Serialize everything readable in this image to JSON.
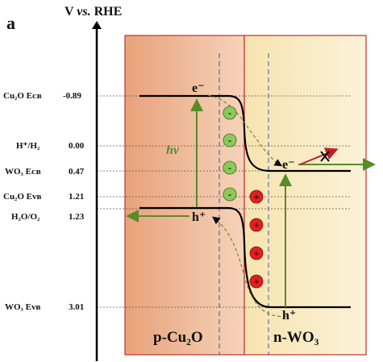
{
  "panel_label": "a",
  "axis": {
    "title_prefix": "V",
    "title_italic": "vs.",
    "title_suffix": "RHE"
  },
  "levels": [
    {
      "name": "Cu₂O Eᴄʙ",
      "value": "-0.89"
    },
    {
      "name": "H⁺/H₂",
      "value": "0.00"
    },
    {
      "name": "WO₃ Eᴄʙ",
      "value": "0.47"
    },
    {
      "name": "Cu₂O Eᴠʙ",
      "value": "1.21"
    },
    {
      "name": "H₂O/O₂",
      "value": "1.23"
    },
    {
      "name": "WO₃ Eᴠʙ",
      "value": "3.01"
    }
  ],
  "regions": {
    "left": "p-Cu₂O",
    "right": "n-WO₃"
  },
  "carriers": {
    "electron": "e⁻",
    "hole": "h⁺"
  },
  "photon_label": "hv",
  "charges": {
    "negative": "-",
    "positive": "+"
  },
  "colors": {
    "cu2o_fill_start": "#e8a27a",
    "cu2o_fill_end": "#f6d3ba",
    "wo3_fill_start": "#f7e3b0",
    "wo3_fill_end": "#fbf2d8",
    "arrow_green": "#5a8a2a",
    "negative_charge": "#8cc85a",
    "positive_charge": "#e02020",
    "blocked_arrow": "#c02020"
  }
}
